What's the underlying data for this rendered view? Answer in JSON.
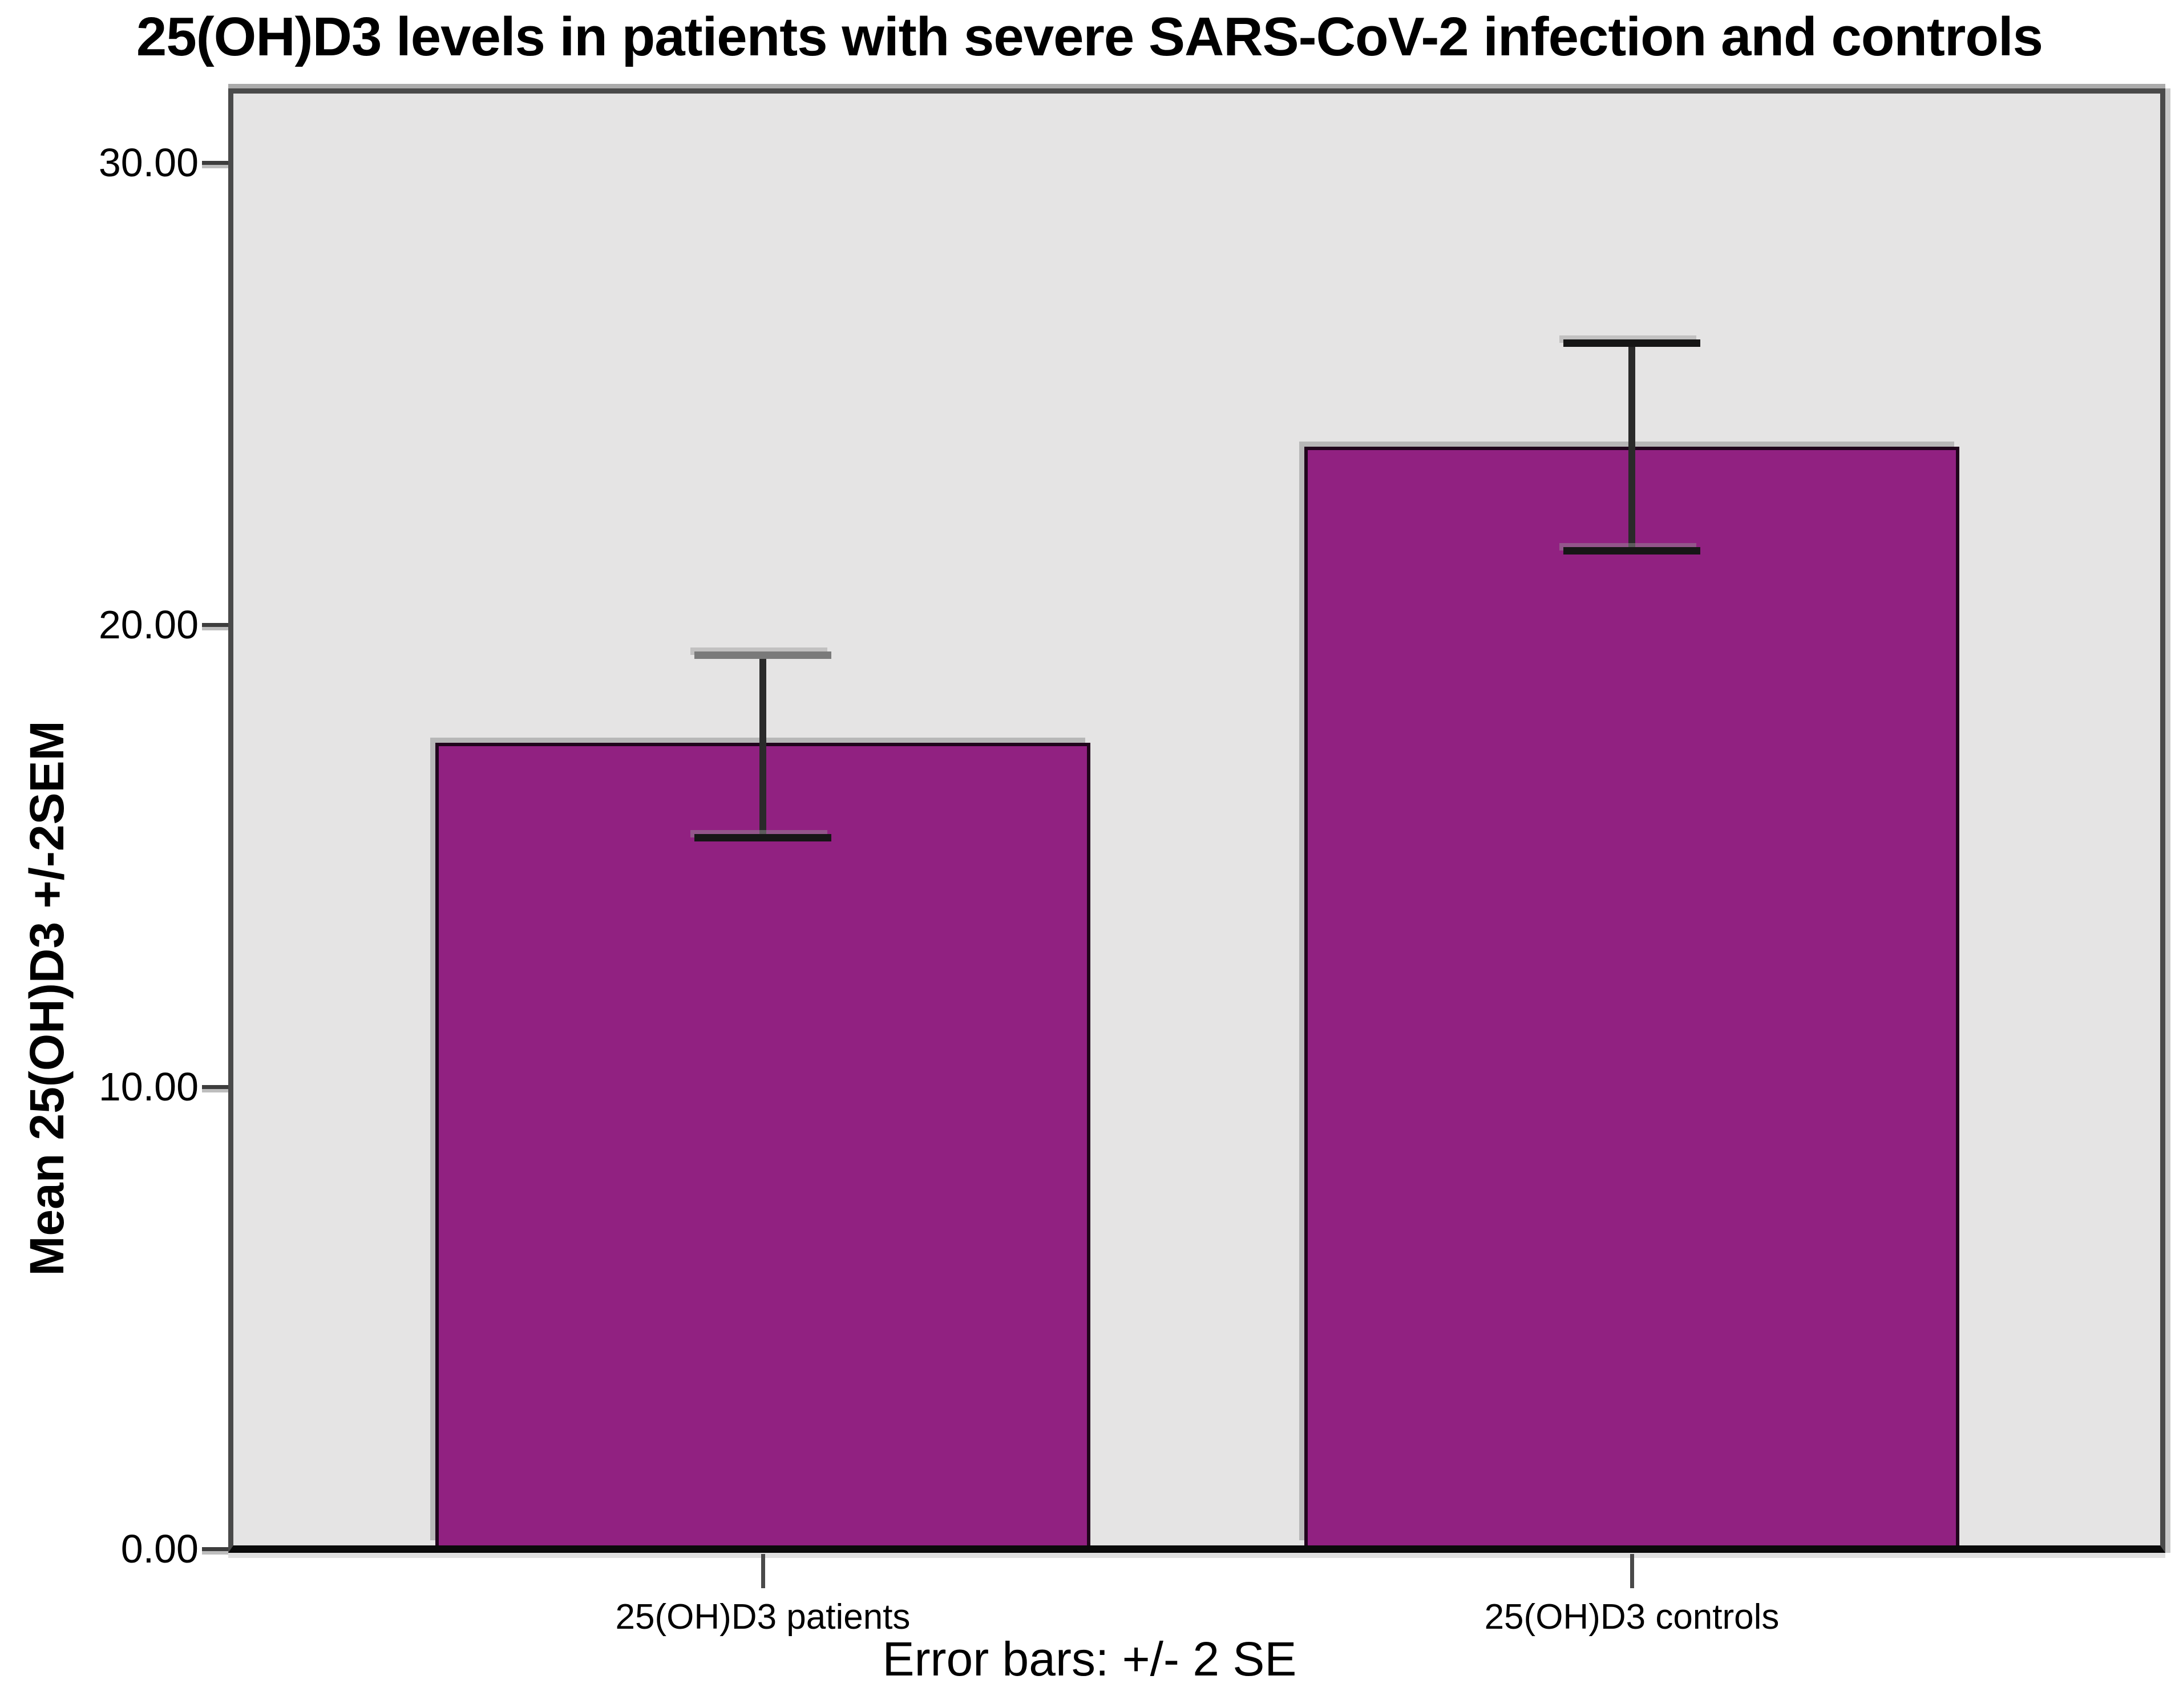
{
  "chart_data": {
    "type": "bar",
    "title": "25(OH)D3 levels in patients with severe SARS-CoV-2 infection and controls",
    "ylabel": "Mean 25(OH)D3 +/-2SEM",
    "footer": "Error bars: +/- 2 SE",
    "categories": [
      "25(OH)D3 patients",
      "25(OH)D3 controls"
    ],
    "values": [
      17.45,
      23.85
    ],
    "error_bars": {
      "type": "+/- 2 SE",
      "low": [
        15.4,
        21.6
      ],
      "high": [
        19.35,
        26.1
      ]
    },
    "yticks": [
      0,
      10,
      20,
      30
    ],
    "ytick_labels": [
      "0.00",
      "10.00",
      "20.00",
      "30.00"
    ],
    "ylim": [
      0,
      31.5
    ],
    "xlabel": "",
    "grid": false,
    "legend": "none",
    "colors": {
      "bar_fill": "#912181",
      "bar_border": "#20041c",
      "plot_background": "#e5e4e4",
      "frame": "#4a4a4a",
      "axis": "#0a0a0a",
      "error_bar": "#2a2a2a",
      "error_cap": "#161616",
      "error_cap_patients_top": "#7a7a7a"
    }
  }
}
